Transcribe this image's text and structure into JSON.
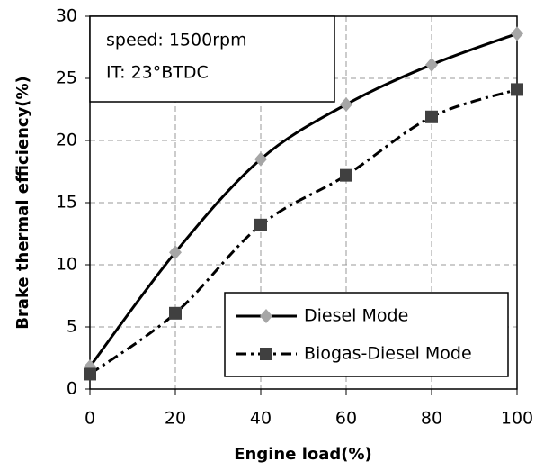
{
  "chart_data": {
    "type": "line",
    "xlabel": "Engine load(%)",
    "ylabel": "Brake thermal efficiency(%)",
    "annotations": [
      "speed: 1500rpm",
      "IT: 23°BTDC"
    ],
    "x": [
      0,
      20,
      40,
      60,
      80,
      100
    ],
    "series": [
      {
        "name": "Diesel Mode",
        "color": "#000000",
        "marker_color": "#a6a6a6",
        "marker": "diamond",
        "dash": "solid",
        "values": [
          1.8,
          11,
          18.5,
          22.9,
          26.1,
          28.6
        ]
      },
      {
        "name": "Biogas-Diesel Mode",
        "color": "#000000",
        "marker_color": "#404040",
        "marker": "square",
        "dash": "dashdot",
        "values": [
          1.2,
          6.1,
          13.2,
          17.2,
          21.9,
          24.1
        ]
      }
    ],
    "xlim": [
      0,
      100
    ],
    "xticks": [
      0,
      20,
      40,
      60,
      80,
      100
    ],
    "ylim": [
      0,
      30
    ],
    "yticks": [
      0,
      5,
      10,
      15,
      20,
      25,
      30
    ],
    "grid": true,
    "legend": "lower right"
  }
}
